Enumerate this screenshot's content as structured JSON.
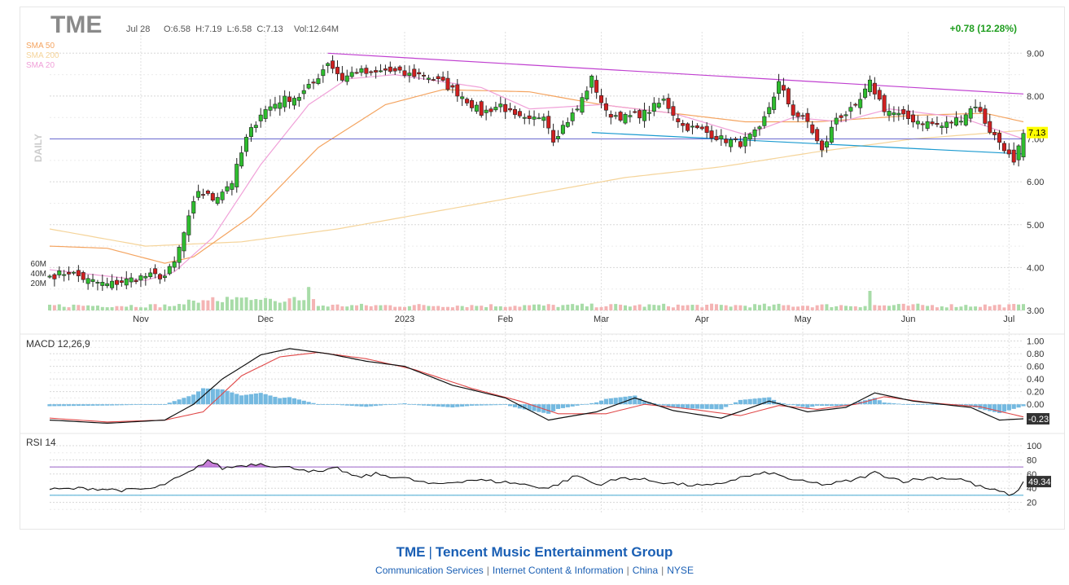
{
  "header": {
    "symbol": "TME",
    "date": "Jul 28",
    "ohlc": "O:6.58  H:7.19  L:6.58  C:7.13",
    "volume": "Vol:12.64M",
    "change": "+0.78 (12.28%)",
    "timeframe": "DAILY"
  },
  "legend": [
    {
      "label": "SMA 50",
      "color": "#f4a460"
    },
    {
      "label": "SMA 200",
      "color": "#f5d49a"
    },
    {
      "label": "SMA 20",
      "color": "#f0a0d8"
    }
  ],
  "footer": {
    "ticker": "TME",
    "company": "Tencent Music Entertainment Group",
    "sector": "Communication Services",
    "industry": "Internet Content & Information",
    "country": "China",
    "exchange": "NYSE"
  },
  "chart_data": {
    "type": "candlestick",
    "x_labels": [
      "Nov",
      "Dec",
      "2023",
      "Feb",
      "Mar",
      "Apr",
      "May",
      "Jun",
      "Jul"
    ],
    "price_axis": {
      "ticks": [
        3.0,
        4.0,
        5.0,
        6.0,
        7.0,
        8.0,
        9.0
      ],
      "tick_labels": [
        "3.00",
        "4.00",
        "5.00",
        "6.00",
        "7.00",
        "8.00",
        "9.00"
      ],
      "range": [
        3.0,
        9.5
      ]
    },
    "volume_axis": {
      "ticks": [
        20,
        40,
        60
      ],
      "tick_labels": [
        "20M",
        "40M",
        "60M"
      ]
    },
    "last_price": 7.13,
    "last_price_label": "7.13",
    "horizontal_line": 7.0,
    "close_anchors": [
      [
        0,
        3.8
      ],
      [
        4,
        3.9
      ],
      [
        8,
        3.7
      ],
      [
        12,
        3.6
      ],
      [
        16,
        3.7
      ],
      [
        20,
        3.8
      ],
      [
        24,
        3.8
      ],
      [
        26,
        4.1
      ],
      [
        28,
        4.8
      ],
      [
        31,
        5.8
      ],
      [
        34,
        5.6
      ],
      [
        38,
        6.0
      ],
      [
        41,
        7.0
      ],
      [
        44,
        7.6
      ],
      [
        48,
        7.9
      ],
      [
        52,
        8.0
      ],
      [
        55,
        8.3
      ],
      [
        58,
        8.8
      ],
      [
        61,
        8.4
      ],
      [
        64,
        8.6
      ],
      [
        67,
        8.5
      ],
      [
        70,
        8.6
      ],
      [
        74,
        8.5
      ],
      [
        78,
        8.5
      ],
      [
        82,
        8.3
      ],
      [
        86,
        8.0
      ],
      [
        90,
        7.6
      ],
      [
        94,
        7.8
      ],
      [
        97,
        7.5
      ],
      [
        100,
        7.4
      ],
      [
        103,
        7.6
      ],
      [
        105,
        7.0
      ],
      [
        107,
        7.3
      ],
      [
        110,
        7.7
      ],
      [
        113,
        8.4
      ],
      [
        116,
        7.6
      ],
      [
        120,
        7.5
      ],
      [
        124,
        7.6
      ],
      [
        128,
        7.9
      ],
      [
        132,
        7.3
      ],
      [
        136,
        7.2
      ],
      [
        140,
        7.0
      ],
      [
        144,
        6.9
      ],
      [
        148,
        7.2
      ],
      [
        152,
        8.3
      ],
      [
        155,
        7.6
      ],
      [
        158,
        7.4
      ],
      [
        161,
        6.7
      ],
      [
        164,
        7.5
      ],
      [
        168,
        7.7
      ],
      [
        171,
        8.3
      ],
      [
        174,
        7.7
      ],
      [
        178,
        7.5
      ],
      [
        182,
        7.4
      ],
      [
        186,
        7.3
      ],
      [
        190,
        7.5
      ],
      [
        193,
        7.8
      ],
      [
        196,
        7.2
      ],
      [
        199,
        6.8
      ],
      [
        201,
        6.4
      ],
      [
        203,
        7.13
      ]
    ],
    "sma_20_anchors": [
      [
        0,
        3.95
      ],
      [
        20,
        3.7
      ],
      [
        26,
        3.9
      ],
      [
        34,
        4.7
      ],
      [
        44,
        6.4
      ],
      [
        54,
        7.8
      ],
      [
        62,
        8.4
      ],
      [
        72,
        8.5
      ],
      [
        90,
        8.2
      ],
      [
        100,
        7.7
      ],
      [
        115,
        7.8
      ],
      [
        130,
        7.6
      ],
      [
        145,
        7.1
      ],
      [
        155,
        7.5
      ],
      [
        165,
        7.4
      ],
      [
        175,
        7.7
      ],
      [
        190,
        7.5
      ],
      [
        203,
        7.0
      ]
    ],
    "sma_50_anchors": [
      [
        0,
        4.5
      ],
      [
        12,
        4.45
      ],
      [
        24,
        4.1
      ],
      [
        30,
        4.25
      ],
      [
        42,
        5.2
      ],
      [
        56,
        6.8
      ],
      [
        70,
        7.8
      ],
      [
        82,
        8.15
      ],
      [
        100,
        8.1
      ],
      [
        115,
        7.8
      ],
      [
        130,
        7.6
      ],
      [
        145,
        7.4
      ],
      [
        160,
        7.4
      ],
      [
        180,
        7.55
      ],
      [
        195,
        7.6
      ],
      [
        203,
        7.4
      ]
    ],
    "sma_200_anchors": [
      [
        0,
        4.9
      ],
      [
        20,
        4.5
      ],
      [
        40,
        4.6
      ],
      [
        60,
        4.9
      ],
      [
        80,
        5.3
      ],
      [
        100,
        5.7
      ],
      [
        120,
        6.1
      ],
      [
        140,
        6.35
      ],
      [
        160,
        6.7
      ],
      [
        180,
        7.0
      ],
      [
        203,
        7.2
      ]
    ],
    "resistance_trendline": [
      [
        58,
        9.0
      ],
      [
        203,
        8.05
      ]
    ],
    "support_trendline": [
      [
        113,
        7.15
      ],
      [
        203,
        6.65
      ]
    ],
    "macd": {
      "label": "MACD 12,26,9",
      "ticks": [
        0.0,
        0.2,
        0.4,
        0.6,
        0.8,
        1.0
      ],
      "tick_labels": [
        "0.00",
        "0.20",
        "0.40",
        "0.60",
        "0.80",
        "1.00"
      ],
      "range": [
        -0.32,
        1.02
      ],
      "last_value": -0.23,
      "last_value_label": "-0.23",
      "macd_anchors": [
        [
          0,
          -0.25
        ],
        [
          12,
          -0.3
        ],
        [
          24,
          -0.25
        ],
        [
          30,
          0.0
        ],
        [
          36,
          0.4
        ],
        [
          44,
          0.78
        ],
        [
          50,
          0.88
        ],
        [
          58,
          0.8
        ],
        [
          66,
          0.68
        ],
        [
          74,
          0.6
        ],
        [
          84,
          0.3
        ],
        [
          95,
          0.1
        ],
        [
          104,
          -0.25
        ],
        [
          114,
          -0.12
        ],
        [
          122,
          0.1
        ],
        [
          130,
          -0.1
        ],
        [
          140,
          -0.22
        ],
        [
          150,
          0.05
        ],
        [
          158,
          -0.12
        ],
        [
          166,
          -0.05
        ],
        [
          172,
          0.18
        ],
        [
          180,
          0.05
        ],
        [
          192,
          -0.05
        ],
        [
          198,
          -0.25
        ],
        [
          203,
          -0.23
        ]
      ],
      "signal_anchors": [
        [
          0,
          -0.22
        ],
        [
          12,
          -0.28
        ],
        [
          24,
          -0.25
        ],
        [
          32,
          -0.12
        ],
        [
          40,
          0.45
        ],
        [
          48,
          0.75
        ],
        [
          56,
          0.82
        ],
        [
          66,
          0.72
        ],
        [
          76,
          0.55
        ],
        [
          88,
          0.25
        ],
        [
          98,
          0.05
        ],
        [
          106,
          -0.15
        ],
        [
          116,
          -0.15
        ],
        [
          124,
          0.0
        ],
        [
          134,
          -0.08
        ],
        [
          144,
          -0.18
        ],
        [
          152,
          -0.02
        ],
        [
          160,
          -0.08
        ],
        [
          168,
          0.0
        ],
        [
          174,
          0.12
        ],
        [
          184,
          0.02
        ],
        [
          194,
          -0.04
        ],
        [
          203,
          -0.2
        ]
      ]
    },
    "rsi": {
      "label": "RSI 14",
      "ticks": [
        20,
        40,
        60,
        80,
        100
      ],
      "tick_labels": [
        "20",
        "40",
        "60",
        "80",
        "100"
      ],
      "range": [
        0,
        100
      ],
      "overbought": 70,
      "oversold": 30,
      "last_value": 49.34,
      "last_value_label": "49.34",
      "rsi_anchors": [
        [
          0,
          38
        ],
        [
          8,
          40
        ],
        [
          16,
          37
        ],
        [
          22,
          40
        ],
        [
          26,
          52
        ],
        [
          30,
          65
        ],
        [
          33,
          80
        ],
        [
          36,
          68
        ],
        [
          40,
          72
        ],
        [
          44,
          75
        ],
        [
          48,
          70
        ],
        [
          52,
          68
        ],
        [
          56,
          62
        ],
        [
          60,
          68
        ],
        [
          64,
          55
        ],
        [
          68,
          60
        ],
        [
          74,
          54
        ],
        [
          80,
          45
        ],
        [
          88,
          52
        ],
        [
          96,
          48
        ],
        [
          104,
          40
        ],
        [
          110,
          58
        ],
        [
          114,
          45
        ],
        [
          120,
          55
        ],
        [
          126,
          50
        ],
        [
          132,
          45
        ],
        [
          138,
          43
        ],
        [
          144,
          55
        ],
        [
          150,
          62
        ],
        [
          156,
          50
        ],
        [
          162,
          45
        ],
        [
          168,
          52
        ],
        [
          172,
          62
        ],
        [
          178,
          50
        ],
        [
          184,
          55
        ],
        [
          190,
          53
        ],
        [
          194,
          42
        ],
        [
          198,
          35
        ],
        [
          201,
          30
        ],
        [
          203,
          49.34
        ]
      ]
    }
  }
}
